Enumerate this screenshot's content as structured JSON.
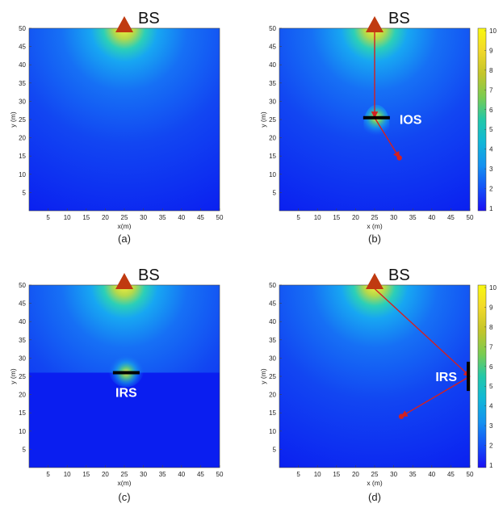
{
  "colors": {
    "base_blue": "#0a1ef0",
    "bs_marker": "#c03a10",
    "ray": "#d42020",
    "surface": "#000000",
    "text_light": "#ffffff"
  },
  "chart_data": [
    {
      "type": "heatmap",
      "panel": "(a)",
      "xlabel": "x(m)",
      "ylabel": "y (m)",
      "xlim": [
        0,
        50
      ],
      "ylim": [
        0,
        50
      ],
      "xticks": [
        5,
        10,
        15,
        20,
        25,
        30,
        35,
        40,
        45,
        50
      ],
      "yticks": [
        5,
        10,
        15,
        20,
        25,
        30,
        35,
        40,
        45,
        50
      ],
      "bs": {
        "label": "BS",
        "x": 25,
        "y": 50
      },
      "surface": null,
      "colorbar": null
    },
    {
      "type": "heatmap",
      "panel": "(b)",
      "xlabel": "x (m)",
      "ylabel": "y (m)",
      "xlim": [
        0,
        50
      ],
      "ylim": [
        0,
        50
      ],
      "xticks": [
        5,
        10,
        15,
        20,
        25,
        30,
        35,
        40,
        45,
        50
      ],
      "yticks": [
        5,
        10,
        15,
        20,
        25,
        30,
        35,
        40,
        45,
        50
      ],
      "bs": {
        "label": "BS",
        "x": 25,
        "y": 50
      },
      "surface": {
        "label": "IOS",
        "orientation": "horizontal",
        "x": [
          22,
          29
        ],
        "y": 25.5
      },
      "rays": [
        {
          "from": [
            25,
            49
          ],
          "to": [
            25,
            25.5
          ]
        },
        {
          "from": [
            25,
            25.5
          ],
          "to": [
            31.5,
            14.5
          ]
        }
      ],
      "user": {
        "x": 31.5,
        "y": 14.5
      },
      "colorbar": {
        "min": 1,
        "max": 10,
        "ticks": [
          1,
          2,
          3,
          4,
          5,
          6,
          7,
          8,
          9,
          10
        ]
      }
    },
    {
      "type": "heatmap",
      "panel": "(c)",
      "xlabel": "x(m)",
      "ylabel": "y (m)",
      "xlim": [
        0,
        50
      ],
      "ylim": [
        0,
        50
      ],
      "xticks": [
        5,
        10,
        15,
        20,
        25,
        30,
        35,
        40,
        45,
        50
      ],
      "yticks": [
        5,
        10,
        15,
        20,
        25,
        30,
        35,
        40,
        45,
        50
      ],
      "bs": {
        "label": "BS",
        "x": 25,
        "y": 50
      },
      "surface": {
        "label": "IRS",
        "orientation": "horizontal",
        "x": [
          22,
          29
        ],
        "y": 26
      },
      "colorbar": null
    },
    {
      "type": "heatmap",
      "panel": "(d)",
      "xlabel": "x (m)",
      "ylabel": "y (m)",
      "xlim": [
        0,
        50
      ],
      "ylim": [
        0,
        50
      ],
      "xticks": [
        5,
        10,
        15,
        20,
        25,
        30,
        35,
        40,
        45,
        50
      ],
      "yticks": [
        5,
        10,
        15,
        20,
        25,
        30,
        35,
        40,
        45,
        50
      ],
      "bs": {
        "label": "BS",
        "x": 25,
        "y": 50
      },
      "surface": {
        "label": "IRS",
        "orientation": "vertical",
        "x": 50,
        "y": [
          21,
          29
        ]
      },
      "rays": [
        {
          "from": [
            25,
            49
          ],
          "to": [
            50,
            25
          ]
        },
        {
          "from": [
            50,
            25
          ],
          "to": [
            32,
            14
          ]
        }
      ],
      "user": {
        "x": 32,
        "y": 14
      },
      "colorbar": {
        "min": 1,
        "max": 10,
        "ticks": [
          1,
          2,
          3,
          4,
          5,
          6,
          7,
          8,
          9,
          10
        ]
      }
    }
  ]
}
